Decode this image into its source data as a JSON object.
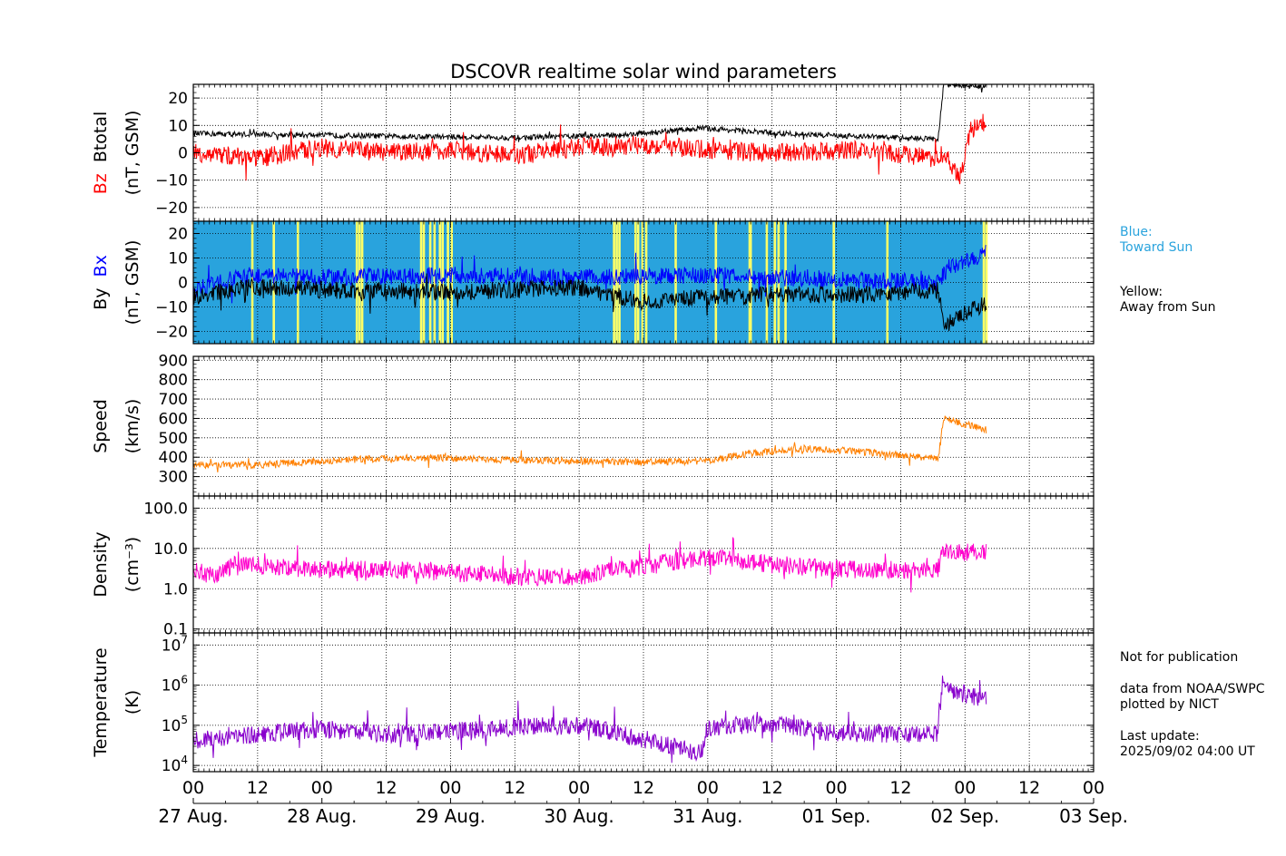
{
  "title": "DSCOVR realtime solar wind parameters",
  "notes": {
    "blue_title": "Blue:",
    "blue_text": "Toward Sun",
    "yellow_title": "Yellow:",
    "yellow_text": "Away from Sun",
    "not_for_publication": "Not for publication",
    "data_from": "data from NOAA/SWPC",
    "plotted_by": "plotted by NICT",
    "last_update_label": "Last update:",
    "last_update": "2025/09/02 04:00 UT"
  },
  "colors": {
    "btotal": "#000000",
    "bz": "#ff0000",
    "bx": "#0000ff",
    "by": "#000000",
    "speed": "#ff8000",
    "density": "#ff00cc",
    "temperature": "#8800cc",
    "toward_sun": "#29a3dd",
    "away_from_sun": "#ffff66"
  },
  "chart_data": {
    "type": "line",
    "x_axis": {
      "range_hours": [
        0,
        168
      ],
      "tick_labels": [
        "00",
        "12",
        "00",
        "12",
        "00",
        "12",
        "00",
        "12",
        "00",
        "12",
        "00",
        "12",
        "00",
        "12",
        "00"
      ],
      "date_labels": [
        "27 Aug.",
        "28 Aug.",
        "29 Aug.",
        "30 Aug.",
        "31 Aug.",
        "01 Sep.",
        "02 Sep.",
        "03 Sep."
      ],
      "data_end_hours": 148
    },
    "panels": [
      {
        "id": "btotal_bz",
        "ylabel_parts": [
          {
            "text": "Bz",
            "color": "#ff0000"
          },
          {
            "text": "Btotal",
            "color": "#000000"
          }
        ],
        "ylabel_unit": "(nT, GSM)",
        "scale": "linear",
        "ylim": [
          -25,
          25
        ],
        "tick_values": [
          -20,
          -10,
          0,
          10,
          20
        ],
        "tick_labels": [
          "−20",
          "−10",
          "0",
          "10",
          "20"
        ],
        "series": [
          {
            "name": "Btotal",
            "color": "#000000",
            "profile": [
              [
                0,
                7
              ],
              [
                20,
                6.5
              ],
              [
                40,
                6
              ],
              [
                60,
                5.5
              ],
              [
                80,
                6.5
              ],
              [
                95,
                9
              ],
              [
                110,
                7
              ],
              [
                125,
                6
              ],
              [
                139,
                5
              ],
              [
                140,
                25
              ],
              [
                148,
                24
              ]
            ]
          },
          {
            "name": "Bz",
            "color": "#ff0000",
            "profile": [
              [
                0,
                0
              ],
              [
                12,
                -2
              ],
              [
                24,
                2
              ],
              [
                36,
                0
              ],
              [
                48,
                1
              ],
              [
                60,
                -1
              ],
              [
                72,
                2
              ],
              [
                84,
                3
              ],
              [
                96,
                1
              ],
              [
                108,
                0
              ],
              [
                124,
                1
              ],
              [
                139,
                -2
              ],
              [
                140,
                0
              ],
              [
                143,
                -10
              ],
              [
                145,
                8
              ],
              [
                148,
                12
              ]
            ]
          }
        ]
      },
      {
        "id": "bx_by",
        "ylabel_parts": [
          {
            "text": "By",
            "color": "#000000"
          },
          {
            "text": "Bx",
            "color": "#0000ff"
          }
        ],
        "ylabel_unit": "(nT, GSM)",
        "scale": "linear",
        "ylim": [
          -25,
          25
        ],
        "tick_values": [
          -20,
          -10,
          0,
          10,
          20
        ],
        "tick_labels": [
          "−20",
          "−10",
          "0",
          "10",
          "20"
        ],
        "background": {
          "default": "toward_sun",
          "away_from_sun_hours": [
            11,
            15,
            19.5,
            30.5,
            31,
            31.5,
            42.5,
            43,
            44.2,
            45,
            46,
            46.5,
            47.5,
            48.2,
            78.5,
            79,
            79.5,
            82.5,
            83,
            83.8,
            84.5,
            90,
            97.5,
            103.8,
            104,
            107,
            108.5,
            109.2,
            110.5,
            119.5,
            129.5,
            147.5,
            148
          ]
        },
        "series": [
          {
            "name": "Bx",
            "color": "#0000ff",
            "profile": [
              [
                0,
                -3
              ],
              [
                10,
                3
              ],
              [
                24,
                2
              ],
              [
                48,
                3
              ],
              [
                72,
                2
              ],
              [
                96,
                3
              ],
              [
                108,
                2
              ],
              [
                124,
                1
              ],
              [
                139,
                0
              ],
              [
                141,
                6
              ],
              [
                148,
                12
              ]
            ]
          },
          {
            "name": "By",
            "color": "#000000",
            "profile": [
              [
                0,
                -6
              ],
              [
                10,
                -2
              ],
              [
                24,
                -3
              ],
              [
                48,
                -4
              ],
              [
                72,
                -2
              ],
              [
                84,
                -8
              ],
              [
                96,
                -6
              ],
              [
                108,
                -5
              ],
              [
                124,
                -5
              ],
              [
                139,
                -3
              ],
              [
                140,
                -18
              ],
              [
                148,
                -8
              ]
            ]
          }
        ]
      },
      {
        "id": "speed",
        "ylabel_parts": [
          {
            "text": "Speed",
            "color": "#000000"
          }
        ],
        "ylabel_unit": "(km/s)",
        "scale": "linear",
        "ylim": [
          200,
          920
        ],
        "tick_values": [
          300,
          400,
          500,
          600,
          700,
          800,
          900
        ],
        "tick_labels": [
          "300",
          "400",
          "500",
          "600",
          "700",
          "800",
          "900"
        ],
        "series": [
          {
            "name": "Speed",
            "color": "#ff8000",
            "profile": [
              [
                0,
                360
              ],
              [
                12,
                360
              ],
              [
                24,
                380
              ],
              [
                36,
                395
              ],
              [
                48,
                395
              ],
              [
                60,
                385
              ],
              [
                72,
                380
              ],
              [
                84,
                375
              ],
              [
                96,
                380
              ],
              [
                104,
                420
              ],
              [
                114,
                445
              ],
              [
                124,
                430
              ],
              [
                139,
                390
              ],
              [
                140,
                600
              ],
              [
                148,
                540
              ]
            ]
          }
        ]
      },
      {
        "id": "density",
        "ylabel_parts": [
          {
            "text": "Density",
            "color": "#000000"
          }
        ],
        "ylabel_unit": "(cm⁻³)",
        "scale": "log",
        "ylim": [
          0.08,
          200
        ],
        "tick_values": [
          0.1,
          1.0,
          10.0,
          100.0
        ],
        "tick_labels": [
          "0.1",
          "1.0",
          "10.0",
          "100.0"
        ],
        "series": [
          {
            "name": "Density",
            "color": "#ff00cc",
            "profile": [
              [
                0,
                3
              ],
              [
                4,
                2
              ],
              [
                8,
                4
              ],
              [
                24,
                3
              ],
              [
                36,
                3
              ],
              [
                48,
                2.5
              ],
              [
                60,
                2
              ],
              [
                72,
                2
              ],
              [
                84,
                3.5
              ],
              [
                96,
                6
              ],
              [
                108,
                4
              ],
              [
                120,
                3
              ],
              [
                139,
                3
              ],
              [
                140,
                8
              ],
              [
                148,
                8
              ]
            ]
          }
        ]
      },
      {
        "id": "temperature",
        "ylabel_parts": [
          {
            "text": "Temperature",
            "color": "#000000"
          }
        ],
        "ylabel_unit": "(K)",
        "scale": "log",
        "ylim": [
          7000,
          20000000
        ],
        "tick_values": [
          10000,
          100000,
          1000000,
          10000000
        ],
        "tick_labels": [
          "10^4",
          "10^5",
          "10^6",
          "10^7"
        ],
        "series": [
          {
            "name": "Temperature",
            "color": "#8800cc",
            "profile": [
              [
                0,
                40000
              ],
              [
                12,
                60000
              ],
              [
                24,
                80000
              ],
              [
                36,
                60000
              ],
              [
                48,
                70000
              ],
              [
                60,
                90000
              ],
              [
                72,
                100000
              ],
              [
                84,
                40000
              ],
              [
                95,
                20000
              ],
              [
                96,
                90000
              ],
              [
                108,
                110000
              ],
              [
                120,
                60000
              ],
              [
                139,
                60000
              ],
              [
                140,
                800000
              ],
              [
                148,
                400000
              ]
            ]
          }
        ]
      }
    ]
  }
}
